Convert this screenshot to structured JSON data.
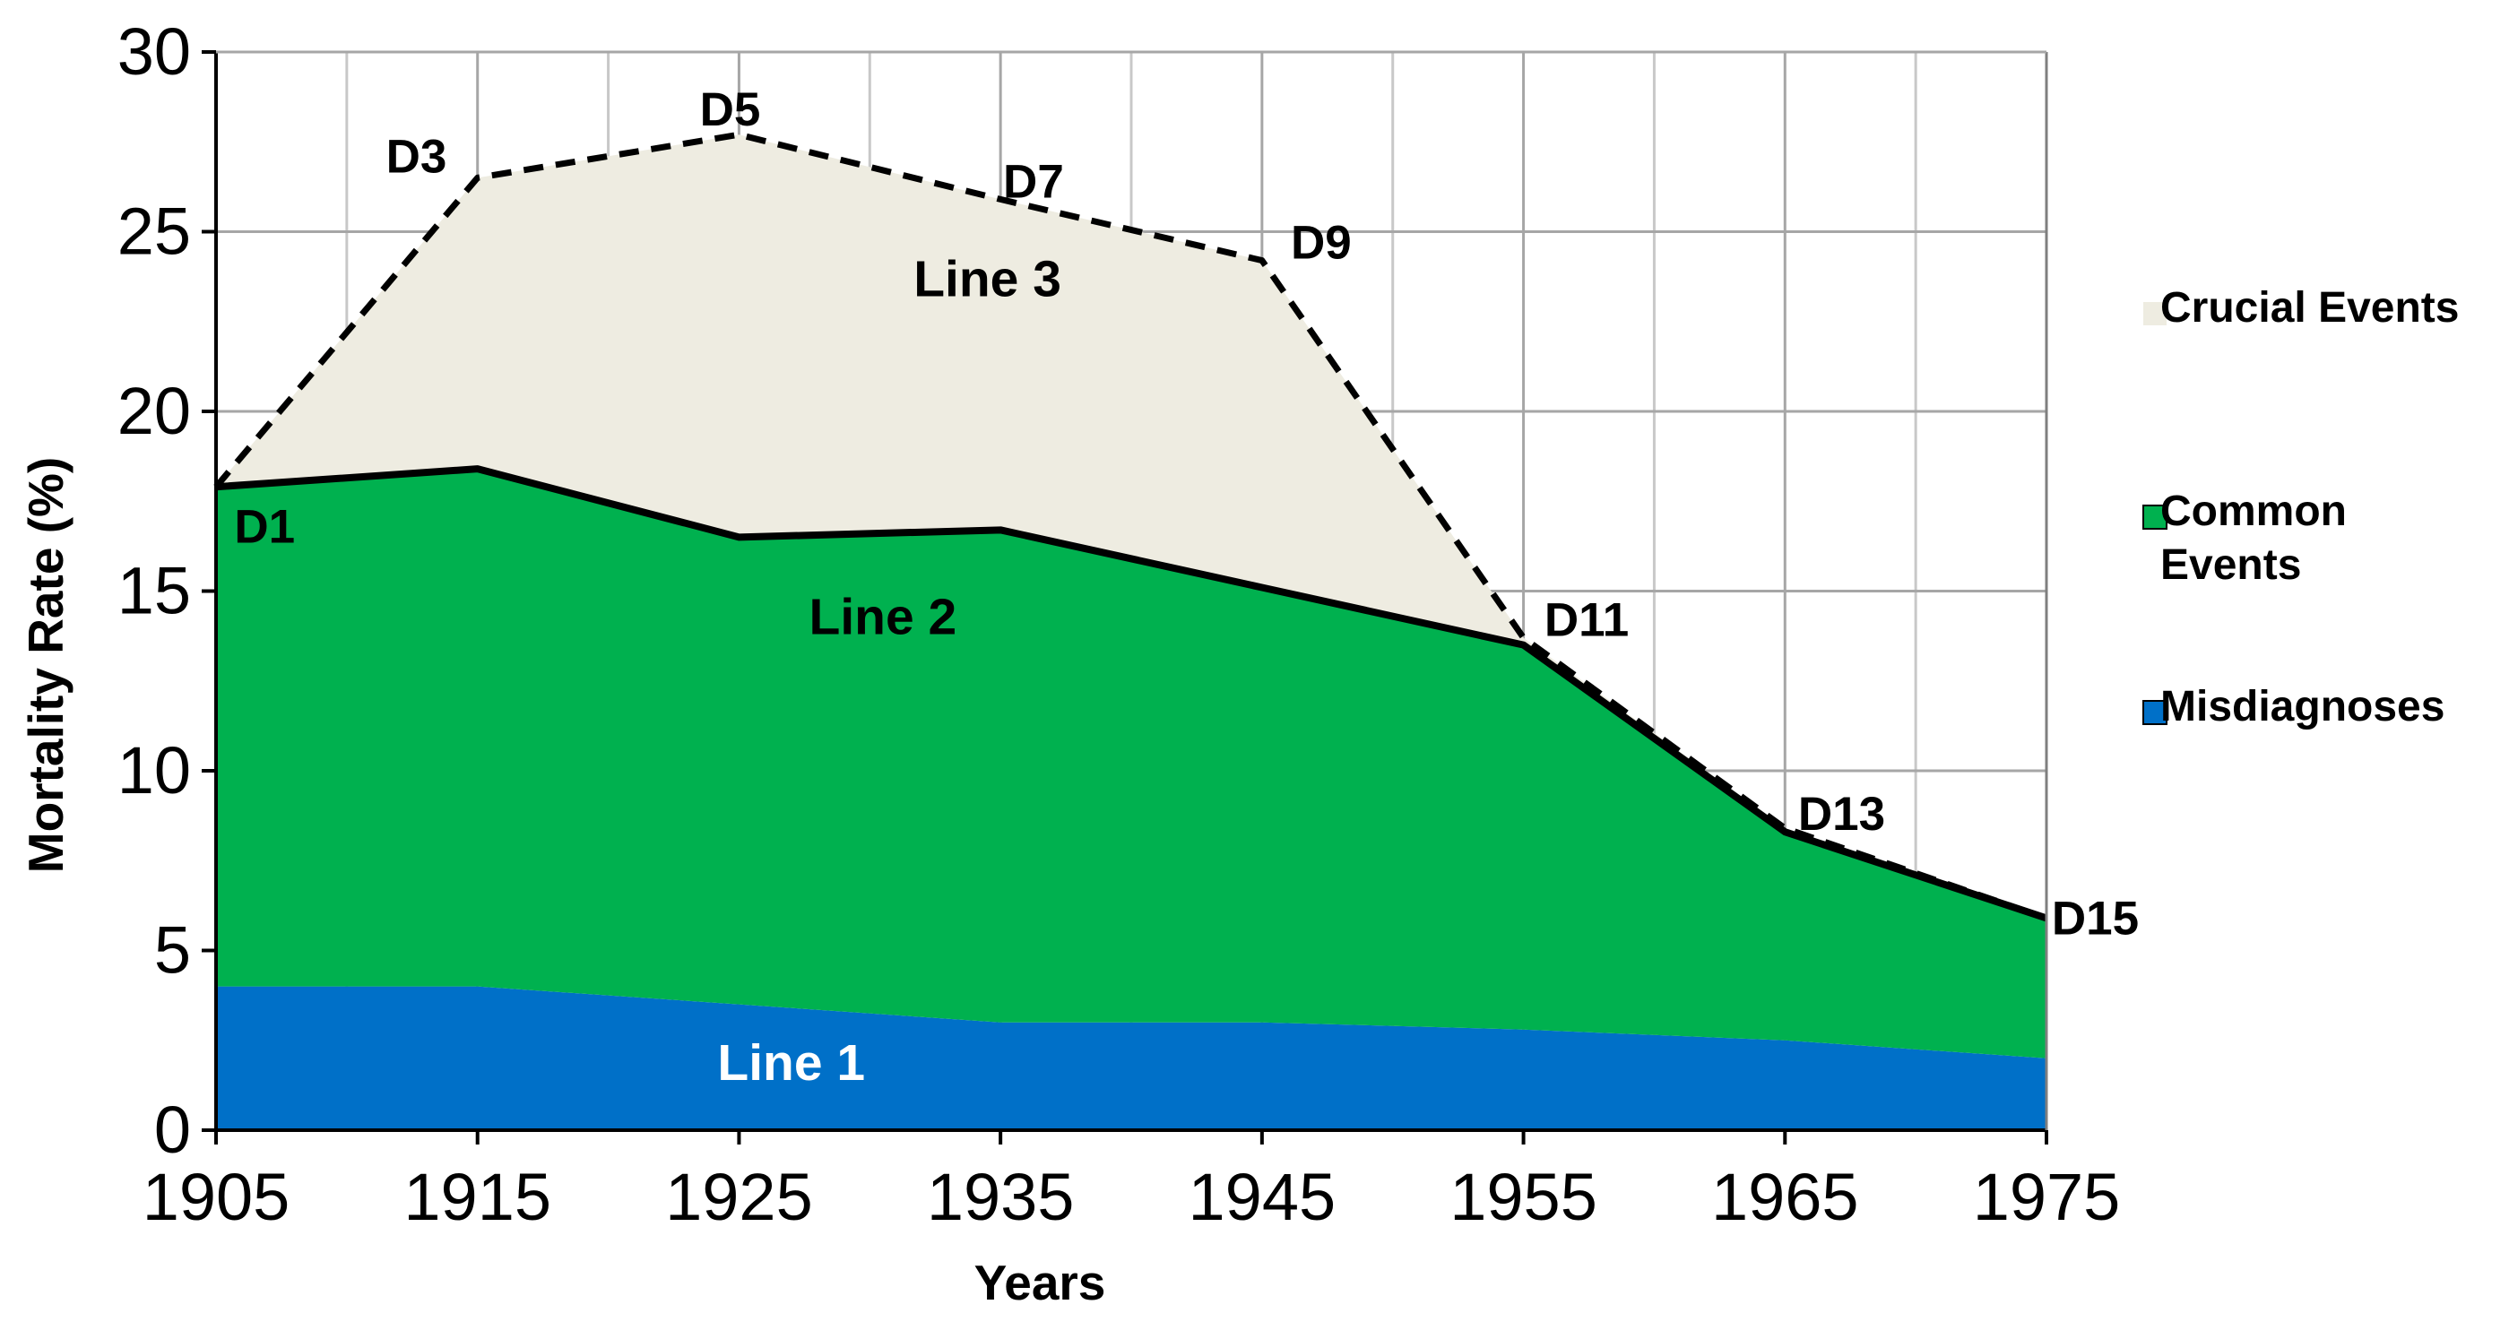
{
  "chart_data": {
    "type": "area",
    "title": "",
    "xlabel": "Years",
    "ylabel": "Mortality Rate (%)",
    "x": [
      1905,
      1915,
      1925,
      1935,
      1945,
      1955,
      1965,
      1975
    ],
    "xlim": [
      1905,
      1975
    ],
    "ylim": [
      0,
      30
    ],
    "x_ticks": [
      "1905",
      "1915",
      "1925",
      "1935",
      "1945",
      "1955",
      "1965",
      "1975"
    ],
    "y_ticks": [
      "0",
      "5",
      "10",
      "15",
      "20",
      "25",
      "30"
    ],
    "grid": true,
    "stacked": true,
    "legend_position": "right",
    "series": [
      {
        "name": "Misdiagnoses",
        "color": "#0070C8",
        "cumulative_top": [
          4.0,
          4.0,
          3.5,
          3.0,
          3.0,
          2.8,
          2.5,
          2.0
        ]
      },
      {
        "name": "Common Events",
        "color": "#00B14F",
        "cumulative_top": [
          17.9,
          18.4,
          16.5,
          16.7,
          15.1,
          13.5,
          8.3,
          5.9
        ]
      },
      {
        "name": "Crucial Events",
        "color": "#EEECE1",
        "cumulative_top": [
          17.9,
          26.5,
          27.7,
          25.9,
          24.2,
          13.7,
          8.4,
          5.9
        ]
      }
    ],
    "area_labels": [
      {
        "text": "Line 1",
        "x": 1927,
        "y": 1.9,
        "color": "#ffffff"
      },
      {
        "text": "Line 2",
        "x": 1930.5,
        "y": 14.3,
        "color": "#000000"
      },
      {
        "text": "Line 3",
        "x": 1934.5,
        "y": 23.7,
        "color": "#000000"
      }
    ],
    "point_labels": [
      {
        "text": "D1",
        "x": 1905.7,
        "y": 16.8
      },
      {
        "text": "D3",
        "x": 1911.5,
        "y": 27.1
      },
      {
        "text": "D5",
        "x": 1923.5,
        "y": 28.4
      },
      {
        "text": "D7",
        "x": 1935.1,
        "y": 26.4
      },
      {
        "text": "D9",
        "x": 1946.1,
        "y": 24.7
      },
      {
        "text": "D11",
        "x": 1955.8,
        "y": 14.2
      },
      {
        "text": "D13",
        "x": 1965.5,
        "y": 8.8
      },
      {
        "text": "D15",
        "x": 1975.2,
        "y": 5.9
      }
    ]
  }
}
